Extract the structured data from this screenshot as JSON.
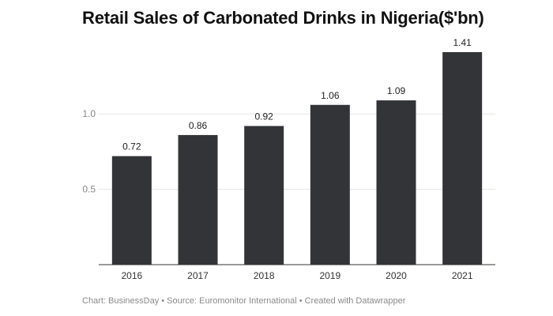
{
  "chart_data": {
    "type": "bar",
    "title": "Retail Sales of Carbonated Drinks in Nigeria($'bn)",
    "categories": [
      "2016",
      "2017",
      "2018",
      "2019",
      "2020",
      "2021"
    ],
    "values": [
      0.72,
      0.86,
      0.92,
      1.06,
      1.09,
      1.41
    ],
    "value_labels": [
      "0.72",
      "0.86",
      "0.92",
      "1.06",
      "1.09",
      "1.41"
    ],
    "yticks": [
      0.5,
      1.0
    ],
    "ytick_labels": [
      "0.5",
      "1.0"
    ],
    "ylim": [
      0,
      1.41
    ],
    "xlabel": "",
    "ylabel": "",
    "grid": true,
    "bar_color": "#323437"
  },
  "footer": {
    "text": "Chart: BusinessDay • Source: Euromonitor International • Created with Datawrapper"
  }
}
